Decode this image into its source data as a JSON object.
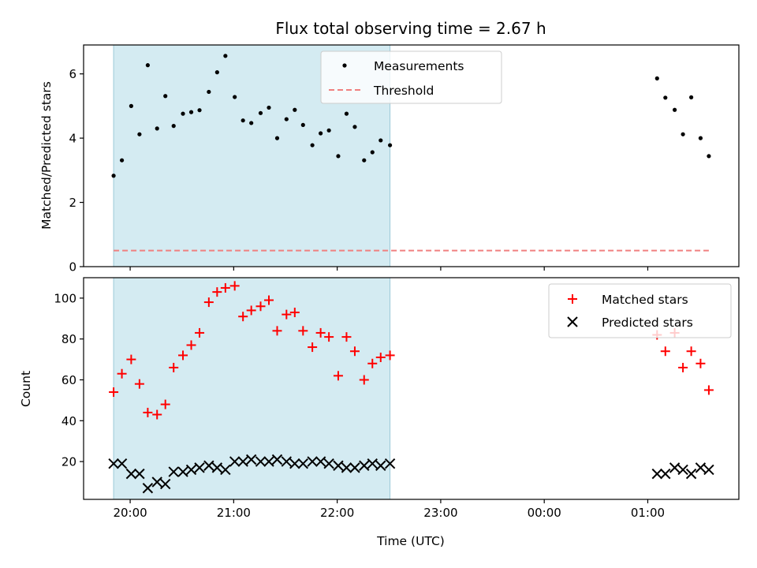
{
  "chart_data": {
    "title": "Flux total observing time = 2.67 h",
    "type": "scatter",
    "x_unit": "UTC hour (values >= 24 are after midnight)",
    "xlabel": "Time (UTC)",
    "x_ticks": [
      {
        "value": 20,
        "label": "20:00"
      },
      {
        "value": 21,
        "label": "21:00"
      },
      {
        "value": 22,
        "label": "22:00"
      },
      {
        "value": 23,
        "label": "23:00"
      },
      {
        "value": 24,
        "label": "00:00"
      },
      {
        "value": 25,
        "label": "01:00"
      }
    ],
    "xlim": [
      19.55,
      25.88
    ],
    "shaded_region": {
      "x_start": 19.84,
      "x_end": 22.51,
      "color": "#add8e6"
    },
    "panels": [
      {
        "name": "ratio",
        "ylabel": "Matched/Predicted stars",
        "ylim": [
          0,
          6.9
        ],
        "y_ticks": [
          0,
          2,
          4,
          6
        ],
        "legend": {
          "position": "top-center",
          "entries": [
            "Measurements",
            "Threshold"
          ]
        },
        "series": [
          {
            "name": "Measurements",
            "marker": "dot",
            "color": "#000000",
            "points": [
              [
                19.84,
                2.83
              ],
              [
                19.92,
                3.31
              ],
              [
                20.01,
                5.0
              ],
              [
                20.09,
                4.12
              ],
              [
                20.17,
                6.27
              ],
              [
                20.26,
                4.3
              ],
              [
                20.34,
                5.31
              ],
              [
                20.42,
                4.38
              ],
              [
                20.51,
                4.76
              ],
              [
                20.59,
                4.81
              ],
              [
                20.67,
                4.87
              ],
              [
                20.76,
                5.44
              ],
              [
                20.84,
                6.05
              ],
              [
                20.92,
                6.56
              ],
              [
                21.01,
                5.28
              ],
              [
                21.09,
                4.55
              ],
              [
                21.17,
                4.47
              ],
              [
                21.26,
                4.78
              ],
              [
                21.34,
                4.95
              ],
              [
                21.42,
                4.0
              ],
              [
                21.51,
                4.59
              ],
              [
                21.59,
                4.88
              ],
              [
                21.67,
                4.41
              ],
              [
                21.76,
                3.78
              ],
              [
                21.84,
                4.15
              ],
              [
                21.92,
                4.24
              ],
              [
                22.01,
                3.44
              ],
              [
                22.09,
                4.76
              ],
              [
                22.17,
                4.35
              ],
              [
                22.26,
                3.31
              ],
              [
                22.34,
                3.56
              ],
              [
                22.42,
                3.93
              ],
              [
                22.51,
                3.78
              ],
              [
                25.09,
                5.86
              ],
              [
                25.17,
                5.26
              ],
              [
                25.26,
                4.88
              ],
              [
                25.34,
                4.12
              ],
              [
                25.42,
                5.27
              ],
              [
                25.51,
                4.0
              ],
              [
                25.59,
                3.44
              ]
            ]
          },
          {
            "name": "Threshold",
            "marker": "dashed-line",
            "color": "#f08080",
            "points": [
              [
                19.84,
                0.5
              ],
              [
                25.59,
                0.5
              ]
            ]
          }
        ]
      },
      {
        "name": "counts",
        "ylabel": "Count",
        "ylim": [
          1.5,
          110
        ],
        "y_ticks": [
          20,
          40,
          60,
          80,
          100
        ],
        "legend": {
          "position": "top-right",
          "entries": [
            "Matched stars",
            "Predicted stars"
          ]
        },
        "series": [
          {
            "name": "Matched stars",
            "marker": "plus",
            "color": "#ff0000",
            "points": [
              [
                19.84,
                54
              ],
              [
                19.92,
                63
              ],
              [
                20.01,
                70
              ],
              [
                20.09,
                58
              ],
              [
                20.17,
                44
              ],
              [
                20.26,
                43
              ],
              [
                20.34,
                48
              ],
              [
                20.42,
                66
              ],
              [
                20.51,
                72
              ],
              [
                20.59,
                77
              ],
              [
                20.67,
                83
              ],
              [
                20.76,
                98
              ],
              [
                20.84,
                103
              ],
              [
                20.92,
                105
              ],
              [
                21.01,
                106
              ],
              [
                21.09,
                91
              ],
              [
                21.17,
                94
              ],
              [
                21.26,
                96
              ],
              [
                21.34,
                99
              ],
              [
                21.42,
                84
              ],
              [
                21.51,
                92
              ],
              [
                21.59,
                93
              ],
              [
                21.67,
                84
              ],
              [
                21.76,
                76
              ],
              [
                21.84,
                83
              ],
              [
                21.92,
                81
              ],
              [
                22.01,
                62
              ],
              [
                22.09,
                81
              ],
              [
                22.17,
                74
              ],
              [
                22.26,
                60
              ],
              [
                22.34,
                68
              ],
              [
                22.42,
                71
              ],
              [
                22.51,
                72
              ],
              [
                25.09,
                82
              ],
              [
                25.17,
                74
              ],
              [
                25.26,
                83
              ],
              [
                25.34,
                66
              ],
              [
                25.42,
                74
              ],
              [
                25.51,
                68
              ],
              [
                25.59,
                55
              ]
            ]
          },
          {
            "name": "Predicted stars",
            "marker": "x",
            "color": "#000000",
            "points": [
              [
                19.84,
                19
              ],
              [
                19.92,
                19
              ],
              [
                20.01,
                14
              ],
              [
                20.09,
                14
              ],
              [
                20.17,
                7
              ],
              [
                20.26,
                10
              ],
              [
                20.34,
                9
              ],
              [
                20.42,
                15
              ],
              [
                20.51,
                15
              ],
              [
                20.59,
                16
              ],
              [
                20.67,
                17
              ],
              [
                20.76,
                18
              ],
              [
                20.84,
                17
              ],
              [
                20.92,
                16
              ],
              [
                21.01,
                20
              ],
              [
                21.09,
                20
              ],
              [
                21.17,
                21
              ],
              [
                21.26,
                20
              ],
              [
                21.34,
                20
              ],
              [
                21.42,
                21
              ],
              [
                21.51,
                20
              ],
              [
                21.59,
                19
              ],
              [
                21.67,
                19
              ],
              [
                21.76,
                20
              ],
              [
                21.84,
                20
              ],
              [
                21.92,
                19
              ],
              [
                22.01,
                18
              ],
              [
                22.09,
                17
              ],
              [
                22.17,
                17
              ],
              [
                22.26,
                18
              ],
              [
                22.34,
                19
              ],
              [
                22.42,
                18
              ],
              [
                22.51,
                19
              ],
              [
                25.09,
                14
              ],
              [
                25.17,
                14
              ],
              [
                25.26,
                17
              ],
              [
                25.34,
                16
              ],
              [
                25.42,
                14
              ],
              [
                25.51,
                17
              ],
              [
                25.59,
                16
              ]
            ]
          }
        ]
      }
    ]
  }
}
